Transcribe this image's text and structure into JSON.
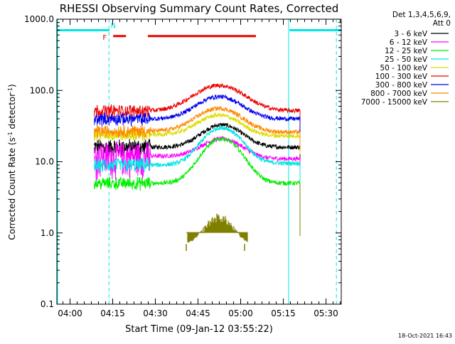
{
  "chart_data": {
    "type": "line",
    "title": "RHESSI Observing Summary Count Rates, Corrected",
    "xlabel": "Start Time (09-Jan-12 03:55:22)",
    "ylabel_main": "Corrected Count Rate (s",
    "ylabel_sup1": "-1",
    "ylabel_mid": " detector",
    "ylabel_sup2": "-1",
    "ylabel_end": ")",
    "x_unit": "minutes after 03:55:22",
    "x_range": [
      0,
      100
    ],
    "y_scale": "log",
    "y_range": [
      0.1,
      1000
    ],
    "y_ticks": [
      {
        "value": 0.1,
        "label": "0.1"
      },
      {
        "value": 1,
        "label": "1.0"
      },
      {
        "value": 10,
        "label": "10.0"
      },
      {
        "value": 100,
        "label": "100.0"
      },
      {
        "value": 1000,
        "label": "1000.0"
      }
    ],
    "x_ticks": [
      {
        "value": 4.63,
        "label": "04:00"
      },
      {
        "value": 19.63,
        "label": "04:15"
      },
      {
        "value": 34.63,
        "label": "04:30"
      },
      {
        "value": 49.63,
        "label": "04:45"
      },
      {
        "value": 64.63,
        "label": "05:00"
      },
      {
        "value": 79.63,
        "label": "05:15"
      },
      {
        "value": 94.63,
        "label": "05:30"
      }
    ],
    "legend_header": [
      "Det 1,3,4,5,6,9,",
      "Att 0"
    ],
    "legend_position": "top-right outside",
    "series": [
      {
        "name": "3 - 6 keV",
        "color": "#000000",
        "pre": 16,
        "pre_noise": 1.5,
        "peak": 33,
        "post": 16,
        "bump_center": 58,
        "bump_width": 9,
        "spiky": false
      },
      {
        "name": "6 - 12 keV",
        "color": "#ff00ff",
        "pre": 12,
        "pre_noise": 3,
        "peak": 21,
        "post": 11,
        "bump_center": 58,
        "bump_width": 9,
        "spiky": false
      },
      {
        "name": "12 - 25 keV",
        "color": "#00ee00",
        "pre": 5,
        "pre_noise": 1,
        "peak": 21,
        "post": 5,
        "bump_center": 58,
        "bump_width": 8.5,
        "spiky": false
      },
      {
        "name": "25 - 50 keV",
        "color": "#00e5e5",
        "pre": 9,
        "pre_noise": 1.2,
        "peak": 30,
        "post": 9.5,
        "bump_center": 58,
        "bump_width": 8.5,
        "spiky": false
      },
      {
        "name": "50 - 100 keV",
        "color": "#dddd00",
        "pre": 24,
        "pre_noise": 1,
        "peak": 45,
        "post": 23,
        "bump_center": 57,
        "bump_width": 9.5,
        "spiky": false
      },
      {
        "name": "100 - 300 keV",
        "color": "#ee0000",
        "pre": 52,
        "pre_noise": 1,
        "peak": 118,
        "post": 52,
        "bump_center": 57,
        "bump_width": 11,
        "spiky": false
      },
      {
        "name": "300 - 800 keV",
        "color": "#0000ee",
        "pre": 40,
        "pre_noise": 1,
        "peak": 82,
        "post": 40,
        "bump_center": 57,
        "bump_width": 10,
        "spiky": false
      },
      {
        "name": "800 - 7000 keV",
        "color": "#ff8800",
        "pre": 27,
        "pre_noise": 1,
        "peak": 56,
        "post": 26,
        "bump_center": 57,
        "bump_width": 10,
        "spiky": false
      },
      {
        "name": "7000 - 15000 keV",
        "color": "#808000",
        "pre": 0.7,
        "pre_noise": 0,
        "peak": 1.9,
        "post": 0.7,
        "bump_center": 57,
        "bump_width": 6,
        "spiky": true
      }
    ],
    "data_start": 13.2,
    "data_end": 85.5,
    "cyan_bars": [
      [
        0,
        18.5
      ],
      [
        81.8,
        100
      ]
    ],
    "cyan_bar_level": 700,
    "cyan_dashed_x": [
      18.3,
      98.3
    ],
    "cyan_solid_x": [
      81.5
    ],
    "flare_segments": [
      [
        19.8,
        24.3
      ],
      [
        32.0,
        70.0
      ]
    ],
    "flare_level": 580,
    "flag_labels": [
      {
        "text": "F",
        "color": "#ee0000",
        "x": 16.8,
        "y": 560
      },
      {
        "text": "N",
        "color": "#00e5e5",
        "x": 19.8,
        "y": 820
      }
    ]
  },
  "timestamp": "18-Oct-2021 16:43"
}
